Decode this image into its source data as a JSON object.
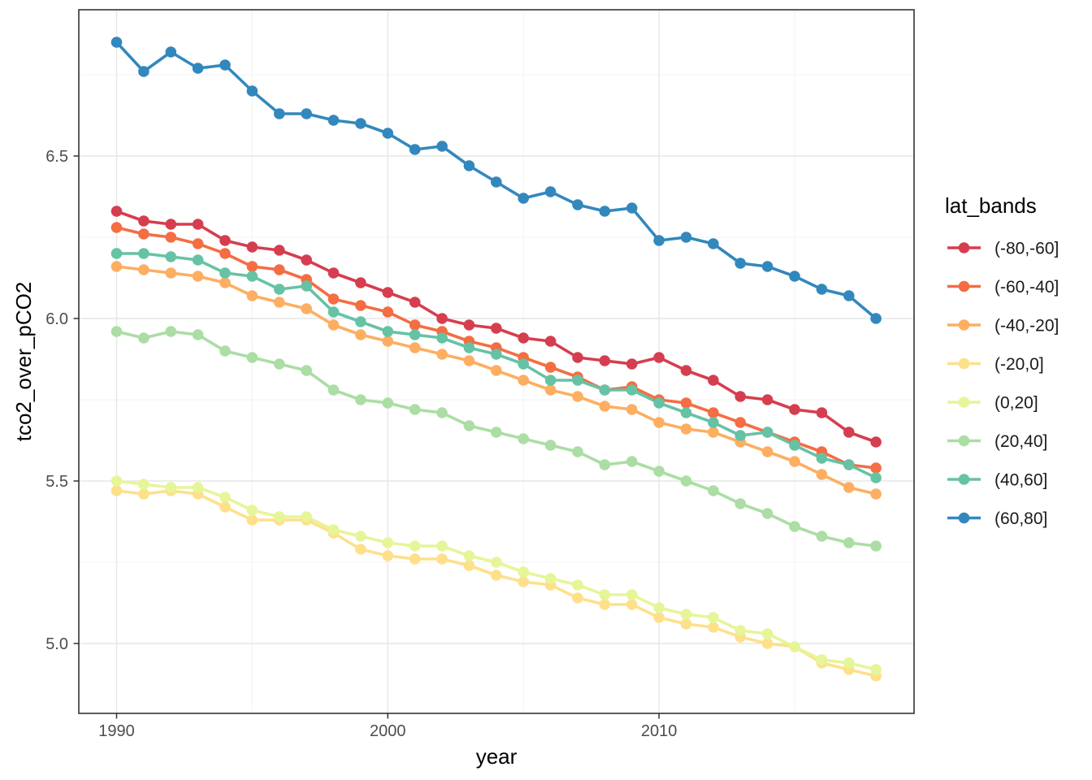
{
  "chart_data": {
    "type": "line",
    "title": "",
    "xlabel": "year",
    "ylabel": "tco2_over_pCO2",
    "legend_title": "lat_bands",
    "legend_position": "right",
    "grid": true,
    "marker": "circle",
    "background_color": "#ffffff",
    "panel_border_color": "#333333",
    "major_grid_color": "#e6e6e6",
    "minor_grid_color": "#f0f0f0",
    "tick_text_color": "#4d4d4d",
    "xlim": [
      1988.6,
      2019.4
    ],
    "ylim": [
      4.785,
      6.95
    ],
    "x_major_ticks": [
      1990,
      2000,
      2010
    ],
    "x_tick_labels": [
      "1990",
      "2000",
      "2010"
    ],
    "x_minor_gridlines": [
      1995,
      2005,
      2015
    ],
    "y_major_ticks": [
      5.0,
      5.5,
      6.0,
      6.5
    ],
    "y_tick_labels": [
      "5.0",
      "5.5",
      "6.0",
      "6.5"
    ],
    "y_minor_gridlines": [
      5.25,
      5.75,
      6.25,
      6.75
    ],
    "x": [
      1990,
      1991,
      1992,
      1993,
      1994,
      1995,
      1996,
      1997,
      1998,
      1999,
      2000,
      2001,
      2002,
      2003,
      2004,
      2005,
      2006,
      2007,
      2008,
      2009,
      2010,
      2011,
      2012,
      2013,
      2014,
      2015,
      2016,
      2017,
      2018
    ],
    "series": [
      {
        "name": "(-80,-60]",
        "color": "#d53e4f",
        "values": [
          6.33,
          6.3,
          6.29,
          6.29,
          6.24,
          6.22,
          6.21,
          6.18,
          6.14,
          6.11,
          6.08,
          6.05,
          6.0,
          5.98,
          5.97,
          5.94,
          5.93,
          5.88,
          5.87,
          5.86,
          5.88,
          5.84,
          5.81,
          5.76,
          5.75,
          5.72,
          5.71,
          5.65,
          5.62
        ]
      },
      {
        "name": "(-60,-40]",
        "color": "#f46d43",
        "values": [
          6.28,
          6.26,
          6.25,
          6.23,
          6.2,
          6.16,
          6.15,
          6.12,
          6.06,
          6.04,
          6.02,
          5.98,
          5.96,
          5.93,
          5.91,
          5.88,
          5.85,
          5.82,
          5.78,
          5.79,
          5.75,
          5.74,
          5.71,
          5.68,
          5.65,
          5.62,
          5.59,
          5.55,
          5.54
        ]
      },
      {
        "name": "(-40,-20]",
        "color": "#fdae61",
        "values": [
          6.16,
          6.15,
          6.14,
          6.13,
          6.11,
          6.07,
          6.05,
          6.03,
          5.98,
          5.95,
          5.93,
          5.91,
          5.89,
          5.87,
          5.84,
          5.81,
          5.78,
          5.76,
          5.73,
          5.72,
          5.68,
          5.66,
          5.65,
          5.62,
          5.59,
          5.56,
          5.52,
          5.48,
          5.46
        ]
      },
      {
        "name": "(-20,0]",
        "color": "#fee08b",
        "values": [
          5.47,
          5.46,
          5.47,
          5.46,
          5.42,
          5.38,
          5.38,
          5.38,
          5.34,
          5.29,
          5.27,
          5.26,
          5.26,
          5.24,
          5.21,
          5.19,
          5.18,
          5.14,
          5.12,
          5.12,
          5.08,
          5.06,
          5.05,
          5.02,
          5.0,
          4.99,
          4.94,
          4.92,
          4.9
        ]
      },
      {
        "name": "(0,20]",
        "color": "#e6f598",
        "values": [
          5.5,
          5.49,
          5.48,
          5.48,
          5.45,
          5.41,
          5.39,
          5.39,
          5.35,
          5.33,
          5.31,
          5.3,
          5.3,
          5.27,
          5.25,
          5.22,
          5.2,
          5.18,
          5.15,
          5.15,
          5.11,
          5.09,
          5.08,
          5.04,
          5.03,
          4.99,
          4.95,
          4.94,
          4.92
        ]
      },
      {
        "name": "(20,40]",
        "color": "#abdda4",
        "values": [
          5.96,
          5.94,
          5.96,
          5.95,
          5.9,
          5.88,
          5.86,
          5.84,
          5.78,
          5.75,
          5.74,
          5.72,
          5.71,
          5.67,
          5.65,
          5.63,
          5.61,
          5.59,
          5.55,
          5.56,
          5.53,
          5.5,
          5.47,
          5.43,
          5.4,
          5.36,
          5.33,
          5.31,
          5.3
        ]
      },
      {
        "name": "(40,60]",
        "color": "#66c2a5",
        "values": [
          6.2,
          6.2,
          6.19,
          6.18,
          6.14,
          6.13,
          6.09,
          6.1,
          6.02,
          5.99,
          5.96,
          5.95,
          5.94,
          5.91,
          5.89,
          5.86,
          5.81,
          5.81,
          5.78,
          5.78,
          5.74,
          5.71,
          5.68,
          5.64,
          5.65,
          5.61,
          5.57,
          5.55,
          5.51
        ]
      },
      {
        "name": "(60,80]",
        "color": "#3288bd",
        "values": [
          6.85,
          6.76,
          6.82,
          6.77,
          6.78,
          6.7,
          6.63,
          6.63,
          6.61,
          6.6,
          6.57,
          6.52,
          6.53,
          6.47,
          6.42,
          6.37,
          6.39,
          6.35,
          6.33,
          6.34,
          6.24,
          6.25,
          6.23,
          6.17,
          6.16,
          6.13,
          6.09,
          6.07,
          6.0
        ]
      }
    ]
  }
}
